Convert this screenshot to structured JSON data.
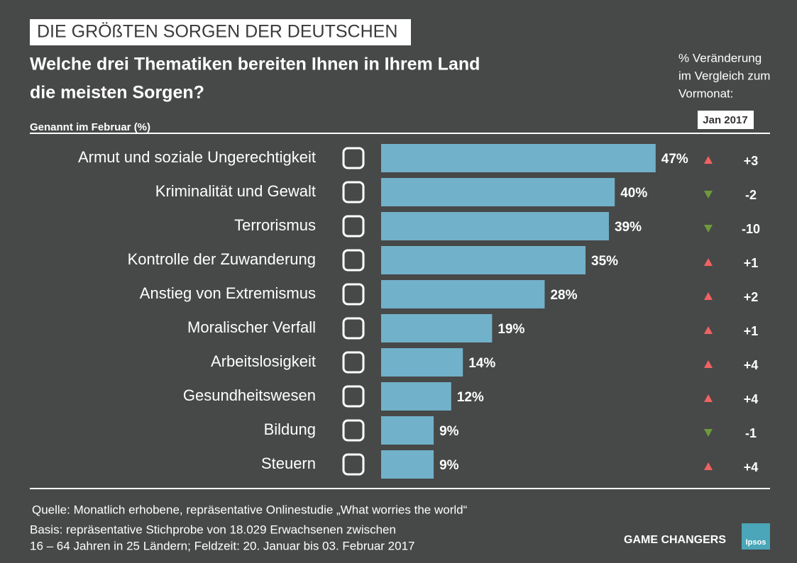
{
  "chart_data": {
    "type": "bar",
    "banner": "DIE GRÖßTEN SORGEN DER DEUTSCHEN",
    "title_lines": [
      "Welche drei Thematiken bereiten Ihnen in Ihrem Land",
      "die meisten Sorgen?"
    ],
    "subtitle": "Genannt im Februar (%)",
    "categories": [
      "Armut und soziale Ungerechtigkeit",
      "Kriminalität und Gewalt",
      "Terrorismus",
      "Kontrolle der Zuwanderung",
      "Anstieg von Extremismus",
      "Moralischer Verfall",
      "Arbeitslosigkeit",
      "Gesundheitswesen",
      "Bildung",
      "Steuern"
    ],
    "values": [
      47,
      40,
      39,
      35,
      28,
      19,
      14,
      12,
      9,
      9
    ],
    "value_labels": [
      "47%",
      "40%",
      "39%",
      "35%",
      "28%",
      "19%",
      "14%",
      "12%",
      "9%",
      "9%"
    ],
    "color": "#72b1ca",
    "change": {
      "header_lines": [
        "% Veränderung",
        "im Vergleich zum",
        "Vormonat:"
      ],
      "column_label": "Jan 2017",
      "values": [
        3,
        -2,
        -10,
        1,
        2,
        1,
        4,
        4,
        -1,
        4
      ],
      "value_labels": [
        "+3",
        "-2",
        "-10",
        "+1",
        "+2",
        "+1",
        "+4",
        "+4",
        "-1",
        "+4"
      ],
      "up_color": "#f06262",
      "down_color": "#6e9a3c"
    },
    "footer": {
      "source": "Quelle: Monatlich erhobene, repräsentative Onlinestudie „What worries the world“",
      "basis_lines": [
        "Basis: repräsentative Stichprobe von 18.029 Erwachsenen zwischen",
        "16 – 64 Jahren in 25 Ländern; Feldzeit: 20. Januar bis 03. Februar 2017"
      ],
      "tagline": "GAME CHANGERS",
      "logo": "Ipsos"
    }
  }
}
